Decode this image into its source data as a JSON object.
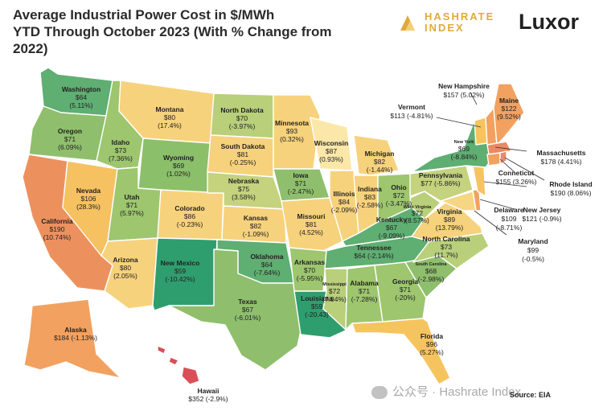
{
  "header": {
    "title_line1": "Average Industrial Power Cost in $/MWh",
    "title_line2": "YTD Through October 2023 (With % Change from",
    "title_line3": "2022)",
    "brand_hashrate_line1": "HASHRATE",
    "brand_hashrate_line2": "INDEX",
    "brand_luxor": "Luxor"
  },
  "colors": {
    "cheap": "#2f9e6e",
    "low": "#7cbd6b",
    "mid_low": "#b9cf7a",
    "mid": "#f6d683",
    "mid_high": "#f6c45f",
    "high": "#f2a160",
    "very_high": "#e98a6a",
    "extreme": "#d94e57"
  },
  "states": {
    "wa": {
      "name": "Washington",
      "price": "$64",
      "change": "(5.11%)"
    },
    "or": {
      "name": "Oregon",
      "price": "$71",
      "change": "(6.09%)"
    },
    "ca": {
      "name": "California",
      "price": "$190",
      "change": "(10.74%)"
    },
    "nv": {
      "name": "Nevada",
      "price": "$106",
      "change": "(28.3%)"
    },
    "id": {
      "name": "Idaho",
      "price": "$73",
      "change": "(7.36%)"
    },
    "mt": {
      "name": "Montana",
      "price": "$80",
      "change": "(17.4%)"
    },
    "wy": {
      "name": "Wyoming",
      "price": "$69",
      "change": "(1.02%)"
    },
    "ut": {
      "name": "Utah",
      "price": "$71",
      "change": "(5.97%)"
    },
    "az": {
      "name": "Arizona",
      "price": "$80",
      "change": "(2.05%)"
    },
    "co": {
      "name": "Colorado",
      "price": "$86",
      "change": "(-0.23%)"
    },
    "nm": {
      "name": "New Mexico",
      "price": "$59",
      "change": "(-10.42%)"
    },
    "nd": {
      "name": "North Dakota",
      "price": "$70",
      "change": "(-3.97%)"
    },
    "sd": {
      "name": "South Dakota",
      "price": "$81",
      "change": "(-0.25%)"
    },
    "ne": {
      "name": "Nebraska",
      "price": "$75",
      "change": "(3.58%)"
    },
    "ks": {
      "name": "Kansas",
      "price": "$82",
      "change": "(-1.09%)"
    },
    "ok": {
      "name": "Oklahoma",
      "price": "$64",
      "change": "(-7.64%)"
    },
    "tx": {
      "name": "Texas",
      "price": "$67",
      "change": "(-6.01%)"
    },
    "mn": {
      "name": "Minnesota",
      "price": "$93",
      "change": "(0.32%)"
    },
    "ia": {
      "name": "Iowa",
      "price": "$71",
      "change": "(-2.47%)"
    },
    "mo": {
      "name": "Missouri",
      "price": "$81",
      "change": "(4.52%)"
    },
    "ar": {
      "name": "Arkansas",
      "price": "$70",
      "change": "(-5.95%)"
    },
    "la": {
      "name": "Louisiana",
      "price": "$59",
      "change": "(-20.43)"
    },
    "wi": {
      "name": "Wisconsin",
      "price": "$87",
      "change": "(0.93%)"
    },
    "il": {
      "name": "Illinois",
      "price": "$84",
      "change": "(-2.09%)"
    },
    "mi": {
      "name": "Michigan",
      "price": "$82",
      "change": "(-1.44%)"
    },
    "in": {
      "name": "Indiana",
      "price": "$83",
      "change": "(-2.58%)"
    },
    "oh": {
      "name": "Ohio",
      "price": "$72",
      "change": "(-3.47%)"
    },
    "ky": {
      "name": "Kentucky",
      "price": "$67",
      "change": "(-9.09%)"
    },
    "tn": {
      "name": "Tennessee",
      "price": "$64",
      "change": "(-2.14%)"
    },
    "ms": {
      "name": "Mississippi",
      "price": "$72",
      "change": "(7.84%)"
    },
    "al": {
      "name": "Alabama",
      "price": "$71",
      "change": "(-7.28%)"
    },
    "ga": {
      "name": "Georgia",
      "price": "$71",
      "change": "(-20%)"
    },
    "fl": {
      "name": "Florida",
      "price": "$96",
      "change": "(5.27%)"
    },
    "sc": {
      "name": "South Carolina",
      "price": "$68",
      "change": "(-2.98%)"
    },
    "nc": {
      "name": "North Carolina",
      "price": "$73",
      "change": "(11.7%)"
    },
    "va": {
      "name": "Virginia",
      "price": "$89",
      "change": "(13.79%)"
    },
    "wv": {
      "name": "West Virginia",
      "price": "$72",
      "change": "(8.57%)"
    },
    "pa": {
      "name": "Pennsylvania",
      "price": "$77",
      "change": "(-5.86%)"
    },
    "ny": {
      "name": "New York",
      "price": "$69",
      "change": "(-8.84%)"
    },
    "vt": {
      "name": "Vermont",
      "value": "$113 (-4.81%)"
    },
    "nh": {
      "name": "New Hampshire",
      "value": "$157 (5.02%)"
    },
    "me": {
      "name": "Maine",
      "price": "$122",
      "change": "(9.52%)"
    },
    "ma": {
      "name": "Massachusetts",
      "value": "$178 (4.41%)"
    },
    "ri": {
      "name": "Rhode Island",
      "value": "$190 (8.06%)"
    },
    "ct": {
      "name": "Conneticut",
      "value": "$155 (3.26%)"
    },
    "nj": {
      "name": "New Jersey",
      "value": "$121 (-0.9%)"
    },
    "de": {
      "name": "Delaware",
      "value1": "$109",
      "value2": "(-8.71%)"
    },
    "md": {
      "name": "Maryland",
      "value1": "$99",
      "value2": "(-0.5%)"
    },
    "ak": {
      "name": "Alaska",
      "value": "$184 (-1.13%)"
    },
    "hi": {
      "name": "Hawaii",
      "value": "$352 (-2.9%)"
    }
  },
  "footer": {
    "source": "Source: EIA",
    "watermark": "公众号 · Hashrate Index"
  }
}
